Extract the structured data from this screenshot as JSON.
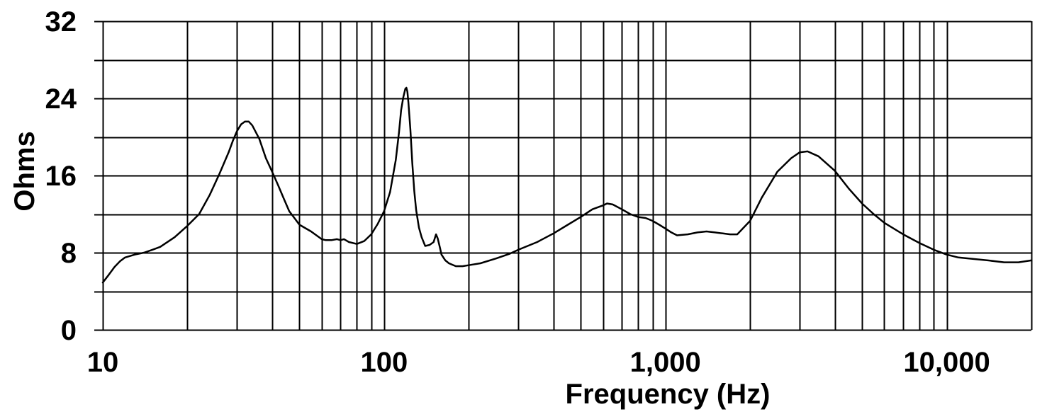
{
  "chart_data": {
    "type": "line",
    "title": "",
    "xlabel": "Frequency (Hz)",
    "ylabel": "Ohms",
    "x_scale": "log",
    "xlim": [
      10,
      20000
    ],
    "ylim": [
      0,
      32
    ],
    "grid": true,
    "legend": "none",
    "colors": {
      "line": "#000000",
      "grid": "#000000",
      "background": "#ffffff"
    },
    "x_ticks": [
      {
        "value": 10,
        "label": "10"
      },
      {
        "value": 100,
        "label": "100"
      },
      {
        "value": 1000,
        "label": "1,000"
      },
      {
        "value": 10000,
        "label": "10,000"
      }
    ],
    "y_ticks": [
      {
        "value": 0,
        "label": "0"
      },
      {
        "value": 8,
        "label": "8"
      },
      {
        "value": 16,
        "label": "16"
      },
      {
        "value": 24,
        "label": "24"
      },
      {
        "value": 32,
        "label": "32"
      }
    ],
    "x_gridlines": [
      10,
      20,
      30,
      40,
      50,
      60,
      70,
      80,
      90,
      100,
      200,
      300,
      400,
      500,
      600,
      700,
      800,
      900,
      1000,
      2000,
      3000,
      4000,
      5000,
      6000,
      7000,
      8000,
      9000,
      10000,
      20000
    ],
    "y_gridlines": [
      0,
      4,
      8,
      12,
      16,
      20,
      24,
      28,
      32
    ],
    "series": [
      {
        "x": [
          10,
          10.5,
          11,
          11.5,
          12,
          13,
          14,
          15,
          16,
          18,
          20,
          22,
          24,
          26,
          28,
          29,
          30,
          31,
          32,
          33,
          34,
          36,
          38,
          40,
          42,
          44,
          46,
          48,
          50,
          55,
          60,
          62,
          65,
          68,
          70,
          72,
          75,
          80,
          85,
          90,
          95,
          100,
          105,
          110,
          113,
          115,
          117,
          119,
          120,
          121,
          122,
          124,
          126,
          128,
          130,
          133,
          136,
          140,
          145,
          150,
          153,
          155,
          158,
          160,
          165,
          170,
          180,
          190,
          200,
          220,
          250,
          280,
          300,
          350,
          400,
          450,
          500,
          550,
          600,
          620,
          650,
          700,
          750,
          800,
          850,
          900,
          950,
          1000,
          1050,
          1100,
          1200,
          1300,
          1400,
          1500,
          1600,
          1700,
          1800,
          2000,
          2200,
          2500,
          2800,
          3000,
          3200,
          3500,
          4000,
          4500,
          5000,
          5500,
          6000,
          7000,
          8000,
          9000,
          10000,
          11000,
          12000,
          14000,
          16000,
          18000,
          20000
        ],
        "y": [
          4.9,
          5.7,
          6.5,
          7.1,
          7.5,
          7.8,
          8.0,
          8.3,
          8.6,
          9.6,
          10.8,
          12.0,
          14.0,
          16.2,
          18.4,
          19.6,
          20.6,
          21.3,
          21.6,
          21.6,
          21.2,
          19.8,
          17.8,
          16.4,
          15.0,
          13.6,
          12.3,
          11.6,
          10.9,
          10.2,
          9.4,
          9.3,
          9.3,
          9.4,
          9.3,
          9.4,
          9.1,
          8.9,
          9.2,
          9.9,
          11.0,
          12.3,
          14.3,
          17.6,
          20.5,
          22.8,
          24.1,
          25.0,
          25.1,
          24.7,
          23.6,
          20.8,
          17.2,
          14.4,
          12.4,
          10.6,
          9.6,
          8.7,
          8.8,
          9.1,
          9.9,
          9.5,
          8.5,
          7.8,
          7.2,
          6.9,
          6.6,
          6.6,
          6.7,
          6.9,
          7.4,
          7.9,
          8.3,
          9.1,
          10.0,
          10.9,
          11.7,
          12.5,
          12.9,
          13.1,
          13.0,
          12.5,
          12.0,
          11.7,
          11.6,
          11.3,
          10.9,
          10.5,
          10.1,
          9.8,
          9.9,
          10.1,
          10.2,
          10.1,
          10.0,
          9.9,
          9.9,
          11.3,
          13.7,
          16.4,
          17.8,
          18.4,
          18.5,
          18.0,
          16.5,
          14.6,
          13.1,
          12.0,
          11.1,
          9.9,
          9.0,
          8.3,
          7.8,
          7.5,
          7.4,
          7.2,
          7.0,
          7.0,
          7.2
        ]
      }
    ]
  }
}
